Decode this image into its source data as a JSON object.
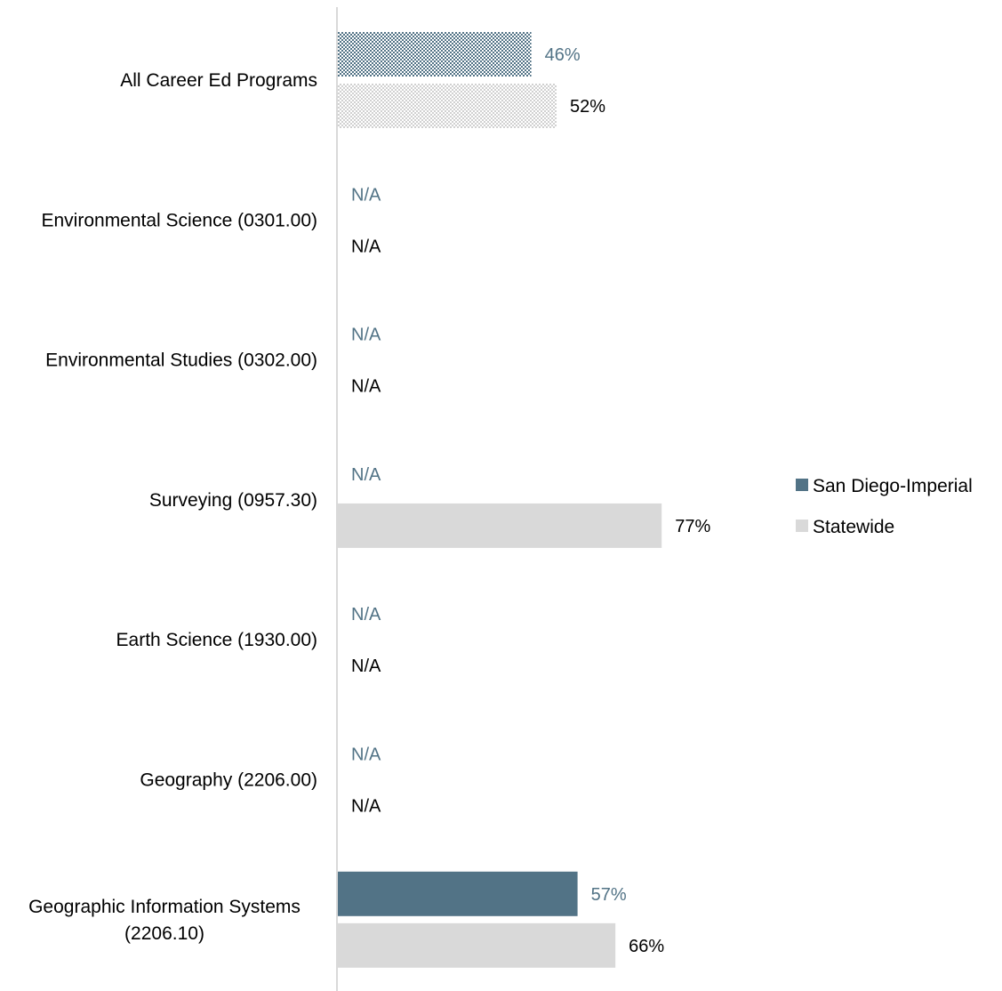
{
  "chart_data": {
    "type": "bar",
    "orientation": "horizontal",
    "title": "",
    "xlabel": "",
    "ylabel": "",
    "xlim": [
      0,
      100
    ],
    "grid": false,
    "legend_position": "right",
    "categories": [
      [
        "All Career Ed Programs"
      ],
      [
        "Environmental Science (0301.00)"
      ],
      [
        "Environmental Studies (0302.00)"
      ],
      [
        "Surveying (0957.30)"
      ],
      [
        "Earth Science (1930.00)"
      ],
      [
        "Geography (2206.00)"
      ],
      [
        "Geographic Information Systems",
        "(2206.10)"
      ]
    ],
    "series": [
      {
        "name": "San Diego-Imperial",
        "color": "#527386",
        "label_color": "#527386",
        "values": [
          46,
          null,
          null,
          null,
          null,
          null,
          57
        ],
        "labels": [
          "46%",
          "N/A",
          "N/A",
          "N/A",
          "N/A",
          "N/A",
          "57%"
        ],
        "patterned": [
          true,
          false,
          false,
          false,
          false,
          false,
          false
        ]
      },
      {
        "name": "Statewide",
        "color": "#d9d9d9",
        "label_color": "#000000",
        "values": [
          52,
          null,
          null,
          77,
          null,
          null,
          66
        ],
        "labels": [
          "52%",
          "N/A",
          "N/A",
          "77%",
          "N/A",
          "N/A",
          "66%"
        ],
        "patterned": [
          true,
          false,
          false,
          false,
          false,
          false,
          false
        ]
      }
    ]
  }
}
